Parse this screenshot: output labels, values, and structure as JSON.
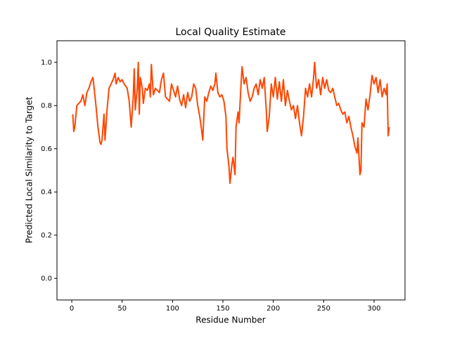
{
  "chart_data": {
    "type": "line",
    "title": "Local Quality Estimate",
    "xlabel": "Residue Number",
    "ylabel": "Predicted Local Similarity to Target",
    "x": [
      1,
      2,
      3,
      5,
      7,
      9,
      11,
      13,
      15,
      17,
      19,
      21,
      22,
      24,
      26,
      28,
      29,
      30,
      32,
      33,
      35,
      37,
      39,
      41,
      43,
      44,
      46,
      48,
      50,
      52,
      55,
      57,
      59,
      61,
      62,
      63,
      65,
      66,
      67,
      68,
      70,
      71,
      73,
      75,
      77,
      78,
      79,
      81,
      83,
      85,
      87,
      89,
      91,
      93,
      95,
      97,
      99,
      101,
      103,
      105,
      107,
      109,
      111,
      113,
      115,
      117,
      119,
      121,
      123,
      125,
      127,
      129,
      130,
      132,
      134,
      136,
      138,
      140,
      142,
      143,
      145,
      147,
      149,
      151,
      153,
      154,
      156,
      157,
      159,
      160,
      162,
      163,
      165,
      166,
      168,
      169,
      171,
      173,
      175,
      177,
      179,
      181,
      183,
      185,
      187,
      189,
      191,
      193,
      194,
      196,
      198,
      200,
      202,
      204,
      206,
      208,
      210,
      212,
      214,
      216,
      218,
      220,
      222,
      224,
      226,
      228,
      230,
      232,
      234,
      236,
      238,
      240,
      241,
      243,
      245,
      247,
      249,
      251,
      253,
      255,
      257,
      259,
      261,
      263,
      265,
      267,
      269,
      271,
      273,
      275,
      277,
      279,
      281,
      283,
      284,
      286,
      287,
      288,
      290,
      292,
      294,
      296,
      298,
      300,
      302,
      304,
      306,
      308,
      310,
      312,
      313,
      314,
      315
    ],
    "series": [
      {
        "color": "#ff4500",
        "values": [
          0.76,
          0.68,
          0.7,
          0.8,
          0.81,
          0.82,
          0.85,
          0.8,
          0.86,
          0.88,
          0.91,
          0.93,
          0.89,
          0.8,
          0.7,
          0.63,
          0.62,
          0.64,
          0.76,
          0.64,
          0.78,
          0.88,
          0.9,
          0.92,
          0.95,
          0.9,
          0.93,
          0.91,
          0.92,
          0.9,
          0.88,
          0.82,
          0.7,
          0.84,
          0.97,
          0.78,
          0.88,
          1.0,
          0.76,
          0.93,
          0.88,
          0.81,
          0.88,
          0.87,
          0.9,
          0.84,
          0.99,
          0.85,
          0.88,
          0.87,
          0.86,
          0.92,
          0.95,
          0.84,
          0.83,
          0.82,
          0.9,
          0.87,
          0.84,
          0.89,
          0.83,
          0.8,
          0.85,
          0.79,
          0.86,
          0.82,
          0.84,
          0.9,
          0.88,
          0.8,
          0.75,
          0.68,
          0.64,
          0.84,
          0.82,
          0.86,
          0.89,
          0.87,
          0.9,
          0.95,
          0.86,
          0.84,
          0.85,
          0.82,
          0.75,
          0.6,
          0.52,
          0.44,
          0.53,
          0.56,
          0.48,
          0.7,
          0.77,
          0.72,
          0.9,
          0.98,
          0.9,
          0.93,
          0.86,
          0.82,
          0.84,
          0.88,
          0.9,
          0.85,
          0.92,
          0.88,
          0.93,
          0.78,
          0.68,
          0.75,
          0.9,
          0.84,
          0.93,
          0.83,
          0.91,
          0.82,
          0.92,
          0.8,
          0.87,
          0.82,
          0.78,
          0.8,
          0.74,
          0.8,
          0.72,
          0.66,
          0.75,
          0.88,
          0.84,
          0.9,
          0.84,
          0.93,
          1.0,
          0.88,
          0.92,
          0.85,
          0.93,
          0.88,
          0.92,
          0.87,
          0.86,
          0.88,
          0.84,
          0.8,
          0.81,
          0.78,
          0.76,
          0.77,
          0.72,
          0.75,
          0.7,
          0.66,
          0.61,
          0.58,
          0.65,
          0.48,
          0.5,
          0.72,
          0.7,
          0.83,
          0.78,
          0.85,
          0.94,
          0.9,
          0.93,
          0.86,
          0.92,
          0.84,
          0.88,
          0.85,
          0.9,
          0.66,
          0.7
        ]
      }
    ],
    "xlim": [
      -14.7,
      330.7
    ],
    "xticks": [
      0,
      50,
      100,
      150,
      200,
      250,
      300
    ],
    "ylim": [
      -0.1,
      1.1
    ],
    "yticks": [
      {
        "value": 0,
        "label": "0.0"
      },
      0.2,
      0.4,
      0.6,
      0.8,
      {
        "value": 1,
        "label": "1.0"
      }
    ]
  }
}
